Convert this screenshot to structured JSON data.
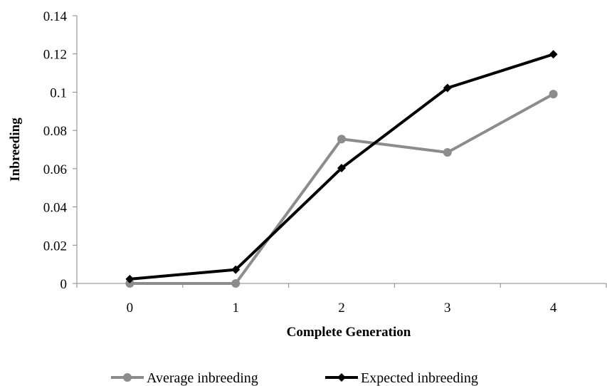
{
  "chart_data": {
    "type": "line",
    "title": "",
    "xlabel": "Complete Generation",
    "ylabel": "Inbreeding",
    "categories": [
      "0",
      "1",
      "2",
      "3",
      "4"
    ],
    "ylim": [
      0,
      0.14
    ],
    "yticks": [
      "0",
      "0.02",
      "0.04",
      "0.06",
      "0.08",
      "0.1",
      "0.12",
      "0.14"
    ],
    "grid": false,
    "legend_position": "bottom",
    "series": [
      {
        "name": "Average inbreeding",
        "color": "#8c8c8c",
        "marker": "circle",
        "values": [
          0,
          0,
          0.0755,
          0.0685,
          0.099
        ]
      },
      {
        "name": "Expected inbreeding",
        "color": "#000000",
        "marker": "diamond",
        "values": [
          0.0023,
          0.0072,
          0.0603,
          0.1022,
          0.1198
        ]
      }
    ]
  }
}
